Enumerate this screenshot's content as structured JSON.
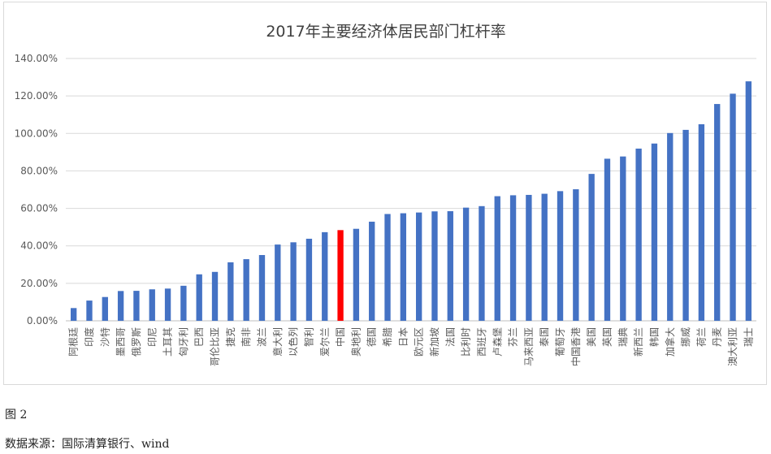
{
  "figure_label": "图 2",
  "source_note": "数据来源：国际清算银行、wind",
  "colors": {
    "bar": "#4472C4",
    "highlight": "#FF0000",
    "grid": "#d9d9d9",
    "axis": "#bfbfbf",
    "text": "#595959"
  },
  "chart_data": {
    "type": "bar",
    "title": "2017年主要经济体居民部门杠杆率",
    "xlabel": "",
    "ylabel": "",
    "ylim": [
      0,
      140
    ],
    "yticks": [
      "0.00%",
      "20.00%",
      "40.00%",
      "60.00%",
      "80.00%",
      "100.00%",
      "120.00%",
      "140.00%"
    ],
    "grid": true,
    "legend": "none",
    "highlight_category": "中国",
    "categories": [
      "阿根廷",
      "印度",
      "沙特",
      "墨西哥",
      "俄罗斯",
      "印尼",
      "土耳其",
      "匈牙利",
      "巴西",
      "哥伦比亚",
      "捷克",
      "南非",
      "波兰",
      "意大利",
      "以色列",
      "智利",
      "爱尔兰",
      "中国",
      "奥地利",
      "德国",
      "希腊",
      "日本",
      "欧元区",
      "新加坡",
      "法国",
      "比利时",
      "西班牙",
      "卢森堡",
      "芬兰",
      "马来西亚",
      "泰国",
      "葡萄牙",
      "中国香港",
      "美国",
      "英国",
      "瑞典",
      "新西兰",
      "韩国",
      "加拿大",
      "挪威",
      "荷兰",
      "丹麦",
      "澳大利亚",
      "瑞士"
    ],
    "values": [
      6.8,
      10.8,
      12.7,
      15.9,
      16.0,
      16.8,
      17.2,
      18.7,
      24.8,
      26.1,
      31.2,
      32.9,
      35.1,
      40.7,
      41.9,
      43.8,
      47.3,
      48.4,
      49.1,
      52.9,
      57.0,
      57.4,
      57.8,
      58.4,
      58.5,
      60.4,
      61.2,
      66.5,
      67.0,
      67.2,
      67.8,
      69.2,
      70.2,
      78.4,
      86.5,
      87.7,
      91.9,
      94.6,
      100.2,
      101.9,
      104.9,
      115.7,
      121.2,
      127.8
    ]
  }
}
